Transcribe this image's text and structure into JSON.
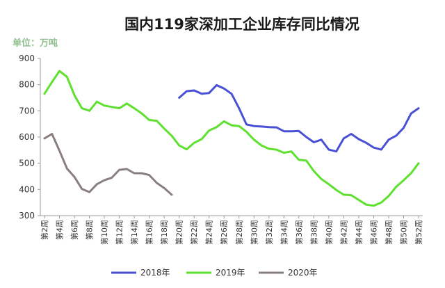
{
  "chart_data": {
    "type": "line",
    "title": "国内119家深加工企业库存同比情况",
    "unit_label": "单位：万吨",
    "ylim": [
      300,
      900
    ],
    "yticks": [
      300,
      400,
      500,
      600,
      700,
      800,
      900
    ],
    "x": [
      "第2周",
      "第3周",
      "第4周",
      "第5周",
      "第6周",
      "第7周",
      "第8周",
      "第9周",
      "第10周",
      "第11周",
      "第12周",
      "第13周",
      "第14周",
      "第15周",
      "第16周",
      "第17周",
      "第18周",
      "第19周",
      "第20周",
      "第21周",
      "第22周",
      "第23周",
      "第24周",
      "第25周",
      "第26周",
      "第27周",
      "第28周",
      "第29周",
      "第30周",
      "第31周",
      "第32周",
      "第33周",
      "第34周",
      "第35周",
      "第36周",
      "第37周",
      "第38周",
      "第39周",
      "第40周",
      "第41周",
      "第42周",
      "第43周",
      "第44周",
      "第45周",
      "第46周",
      "第47周",
      "第48周",
      "第49周",
      "第50周",
      "第51周",
      "第52周"
    ],
    "xtick_labels": [
      "第2周",
      "第4周",
      "第6周",
      "第8周",
      "第10周",
      "第12周",
      "第14周",
      "第16周",
      "第18周",
      "第20周",
      "第22周",
      "第24周",
      "第26周",
      "第28周",
      "第30周",
      "第32周",
      "第34周",
      "第36周",
      "第38周",
      "第40周",
      "第42周",
      "第44周",
      "第46周",
      "第48周",
      "第50周",
      "第52周"
    ],
    "series": [
      {
        "name": "2018年",
        "color": "#4a50d4",
        "values": [
          null,
          null,
          null,
          null,
          null,
          null,
          null,
          null,
          null,
          null,
          null,
          null,
          null,
          null,
          null,
          null,
          null,
          null,
          750,
          775,
          778,
          765,
          768,
          798,
          785,
          765,
          710,
          648,
          642,
          640,
          638,
          637,
          622,
          622,
          623,
          600,
          580,
          590,
          552,
          545,
          595,
          612,
          592,
          578,
          560,
          552,
          590,
          605,
          635,
          690,
          710
        ]
      },
      {
        "name": "2019年",
        "color": "#5ee02e",
        "values": [
          765,
          810,
          852,
          830,
          760,
          710,
          700,
          735,
          720,
          715,
          710,
          728,
          710,
          690,
          665,
          662,
          632,
          605,
          568,
          553,
          578,
          592,
          625,
          638,
          660,
          645,
          642,
          620,
          590,
          568,
          555,
          552,
          540,
          545,
          513,
          510,
          470,
          440,
          420,
          398,
          380,
          378,
          360,
          342,
          338,
          350,
          375,
          410,
          435,
          462,
          500
        ]
      },
      {
        "name": "2020年",
        "color": "#8a7f7f",
        "values": [
          595,
          612,
          548,
          480,
          448,
          402,
          390,
          420,
          435,
          445,
          475,
          478,
          462,
          462,
          455,
          425,
          405,
          380,
          null,
          null,
          null,
          null,
          null,
          null,
          null,
          null,
          null,
          null,
          null,
          null,
          null,
          null,
          null,
          null,
          null,
          null,
          null,
          null,
          null,
          null,
          null,
          null,
          null,
          null,
          null,
          null,
          null,
          null,
          null,
          null,
          null
        ]
      }
    ],
    "legend_position": "bottom",
    "grid": false
  }
}
